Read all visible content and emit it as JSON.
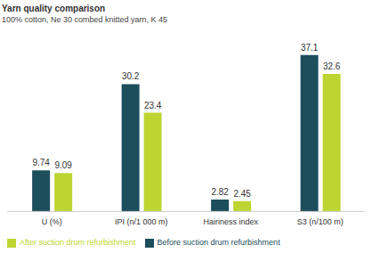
{
  "chart_data": {
    "type": "bar",
    "title": "Yarn quality comparison",
    "subtitle": "100% cotton, Ne 30 combed knitted yarn, K 45",
    "categories": [
      "U (%)",
      "IPI (n/1 000 m)",
      "Hairiness index",
      "S3 (n/100 m)"
    ],
    "series": [
      {
        "name": "Before suction drum refurbishment",
        "color": "#1d4e5c",
        "values": [
          9.74,
          30.2,
          2.82,
          37.1
        ]
      },
      {
        "name": "After suction drum refurbishment",
        "color": "#bdd531",
        "values": [
          9.09,
          23.4,
          2.45,
          32.6
        ]
      }
    ],
    "ylim": [
      0,
      40
    ],
    "data_labels": true,
    "tick_labels": "x",
    "legend": "bottom-left",
    "grid": false
  }
}
